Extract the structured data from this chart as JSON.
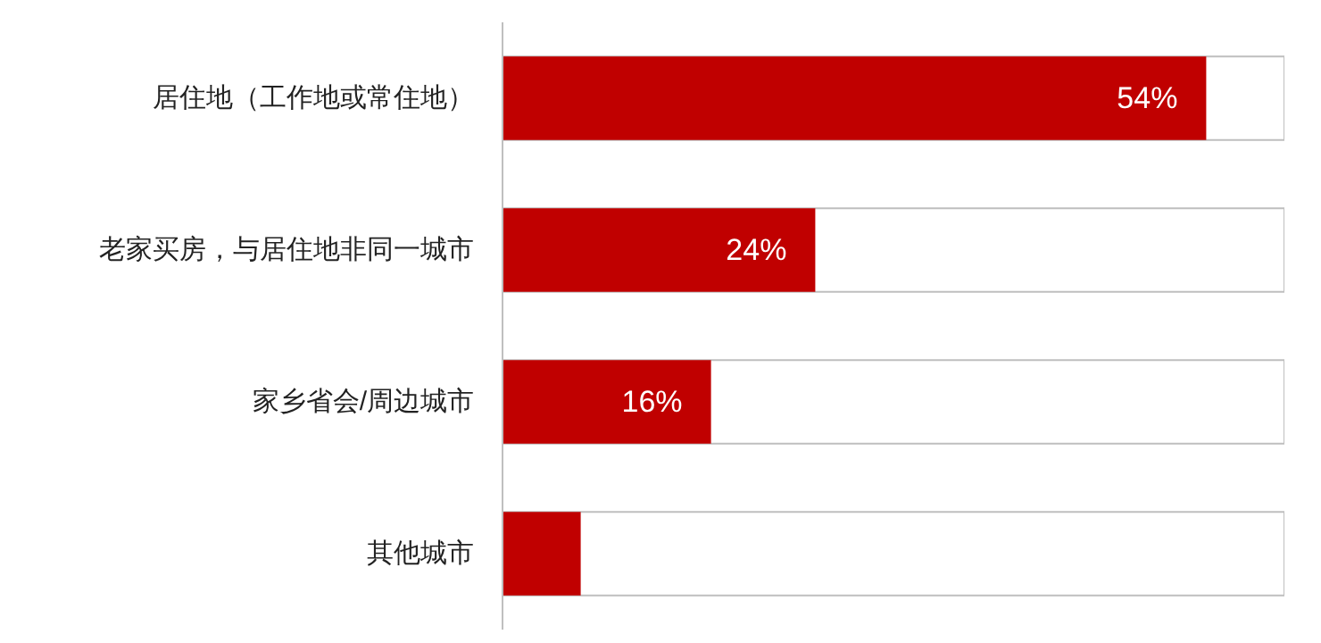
{
  "chart_data": {
    "type": "bar",
    "orientation": "horizontal",
    "categories": [
      "居住地（工作地或常住地）",
      "老家买房，与居住地非同一城市",
      "家乡省会/周边城市",
      "其他城市"
    ],
    "values": [
      54,
      24,
      16,
      6
    ],
    "color": "#c00000",
    "value_labels": [
      "54%",
      "24%",
      "16%",
      null
    ],
    "xlim": [
      0,
      60
    ],
    "tick_labels": "y",
    "grid": false
  }
}
